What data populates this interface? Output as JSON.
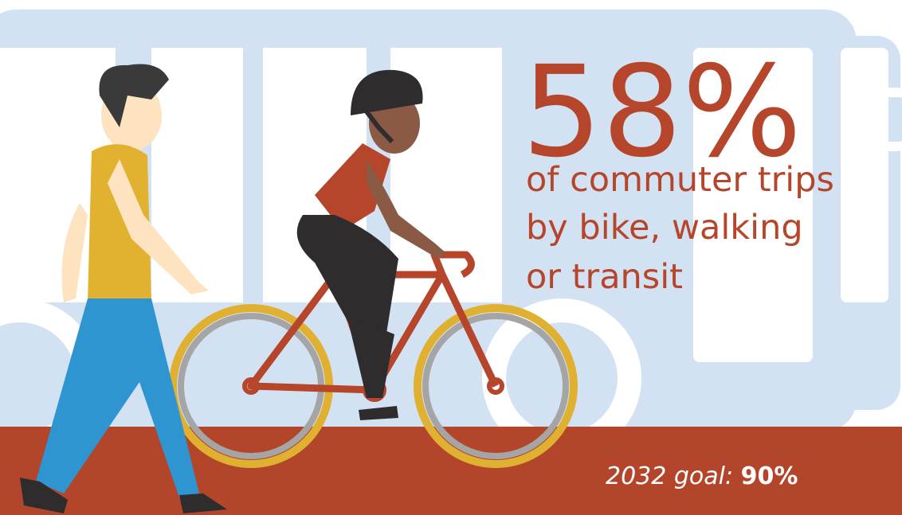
{
  "headline": "58%",
  "caption": [
    "of commuter trips",
    "by bike, walking",
    "or transit"
  ],
  "goal": {
    "label": "2032 goal:",
    "value": "90%"
  }
}
